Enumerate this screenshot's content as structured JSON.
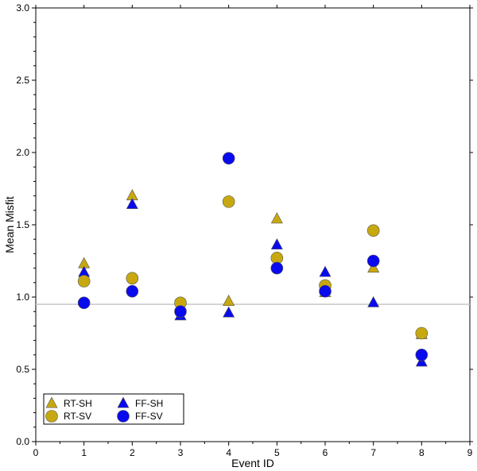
{
  "chart_data": {
    "type": "scatter",
    "title": "",
    "xlabel": "Event ID",
    "ylabel": "Mean Misfit",
    "xlim": [
      0,
      9
    ],
    "ylim": [
      0,
      3
    ],
    "xticks": [
      0,
      1,
      2,
      3,
      4,
      5,
      6,
      7,
      8,
      9
    ],
    "yticks": [
      "0.0",
      "0.5",
      "1.0",
      "1.5",
      "2.0",
      "2.5",
      "3.0"
    ],
    "reference_line": {
      "y": 0.95,
      "color": "#c8c8c8"
    },
    "legend_position": "bottom-left",
    "series": [
      {
        "name": "RT-SH",
        "marker": "triangle",
        "color": "#c8a80f",
        "points": [
          [
            1,
            1.23
          ],
          [
            2,
            1.7
          ],
          [
            3,
            0.87
          ],
          [
            4,
            0.97
          ],
          [
            5,
            1.54
          ],
          [
            6,
            1.03
          ],
          [
            7,
            1.2
          ],
          [
            8,
            0.74
          ]
        ]
      },
      {
        "name": "FF-SH",
        "marker": "triangle",
        "color": "#0a0aee",
        "points": [
          [
            1,
            1.17
          ],
          [
            2,
            1.64
          ],
          [
            3,
            0.87
          ],
          [
            4,
            0.89
          ],
          [
            5,
            1.36
          ],
          [
            6,
            1.17
          ],
          [
            7,
            0.96
          ],
          [
            8,
            0.55
          ]
        ]
      },
      {
        "name": "RT-SV",
        "marker": "circle",
        "color": "#c8a80f",
        "points": [
          [
            1,
            1.11
          ],
          [
            2,
            1.13
          ],
          [
            3,
            0.96
          ],
          [
            4,
            1.66
          ],
          [
            5,
            1.27
          ],
          [
            6,
            1.08
          ],
          [
            7,
            1.46
          ],
          [
            8,
            0.75
          ]
        ]
      },
      {
        "name": "FF-SV",
        "marker": "circle",
        "color": "#0a0aee",
        "points": [
          [
            1,
            0.96
          ],
          [
            2,
            1.04
          ],
          [
            3,
            0.9
          ],
          [
            4,
            1.96
          ],
          [
            5,
            1.2
          ],
          [
            6,
            1.04
          ],
          [
            7,
            1.25
          ],
          [
            8,
            0.6
          ]
        ]
      }
    ],
    "legend_order": [
      "RT-SH",
      "FF-SH",
      "RT-SV",
      "FF-SV"
    ]
  }
}
